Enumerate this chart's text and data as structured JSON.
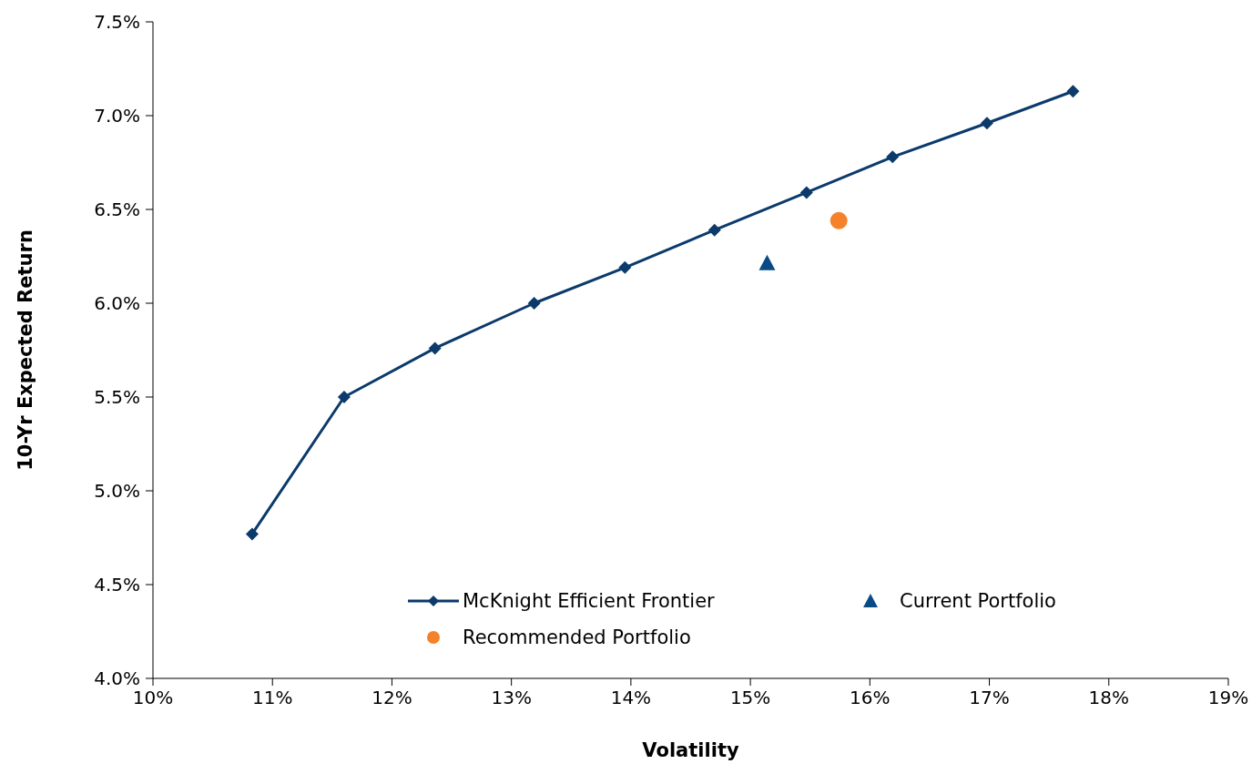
{
  "chart_data": {
    "type": "scatter",
    "xlabel": "Volatility",
    "ylabel": "10-Yr Expected Return",
    "xlim": [
      10,
      19
    ],
    "xticks": [
      {
        "value": 10,
        "label": "10%"
      },
      {
        "value": 11,
        "label": "11%"
      },
      {
        "value": 12,
        "label": "12%"
      },
      {
        "value": 13,
        "label": "13%"
      },
      {
        "value": 14,
        "label": "14%"
      },
      {
        "value": 15,
        "label": "15%"
      },
      {
        "value": 16,
        "label": "16%"
      },
      {
        "value": 17,
        "label": "17%"
      },
      {
        "value": 18,
        "label": "18%"
      },
      {
        "value": 19,
        "label": "19%"
      }
    ],
    "ylim": [
      4.0,
      7.5
    ],
    "yticks": [
      {
        "value": 4.0,
        "label": "4.0%"
      },
      {
        "value": 4.5,
        "label": "4.5%"
      },
      {
        "value": 5.0,
        "label": "5.0%"
      },
      {
        "value": 5.5,
        "label": "5.5%"
      },
      {
        "value": 6.0,
        "label": "6.0%"
      },
      {
        "value": 6.5,
        "label": "6.5%"
      },
      {
        "value": 7.0,
        "label": "7.0%"
      },
      {
        "value": 7.5,
        "label": "7.5%"
      }
    ],
    "grid": false,
    "legend": "bottom right",
    "series": [
      {
        "name": "McKnight Efficient Frontier",
        "type": "line",
        "marker": "diamond",
        "line_style": "solid",
        "color": "#0b3a6b",
        "x": [
          10.83,
          11.6,
          12.36,
          13.19,
          13.95,
          14.7,
          15.47,
          16.19,
          16.98,
          17.7
        ],
        "values": [
          4.77,
          5.5,
          5.76,
          6.0,
          6.19,
          6.39,
          6.59,
          6.78,
          6.96,
          7.13
        ]
      },
      {
        "name": "Current Portfolio",
        "type": "scatter",
        "marker": "triangle",
        "color": "#0a4a85",
        "x": [
          15.14
        ],
        "values": [
          6.21
        ]
      },
      {
        "name": "Recommended Portfolio",
        "type": "scatter",
        "marker": "circle",
        "color": "#f5822a",
        "x": [
          15.74
        ],
        "values": [
          6.44
        ]
      }
    ]
  }
}
